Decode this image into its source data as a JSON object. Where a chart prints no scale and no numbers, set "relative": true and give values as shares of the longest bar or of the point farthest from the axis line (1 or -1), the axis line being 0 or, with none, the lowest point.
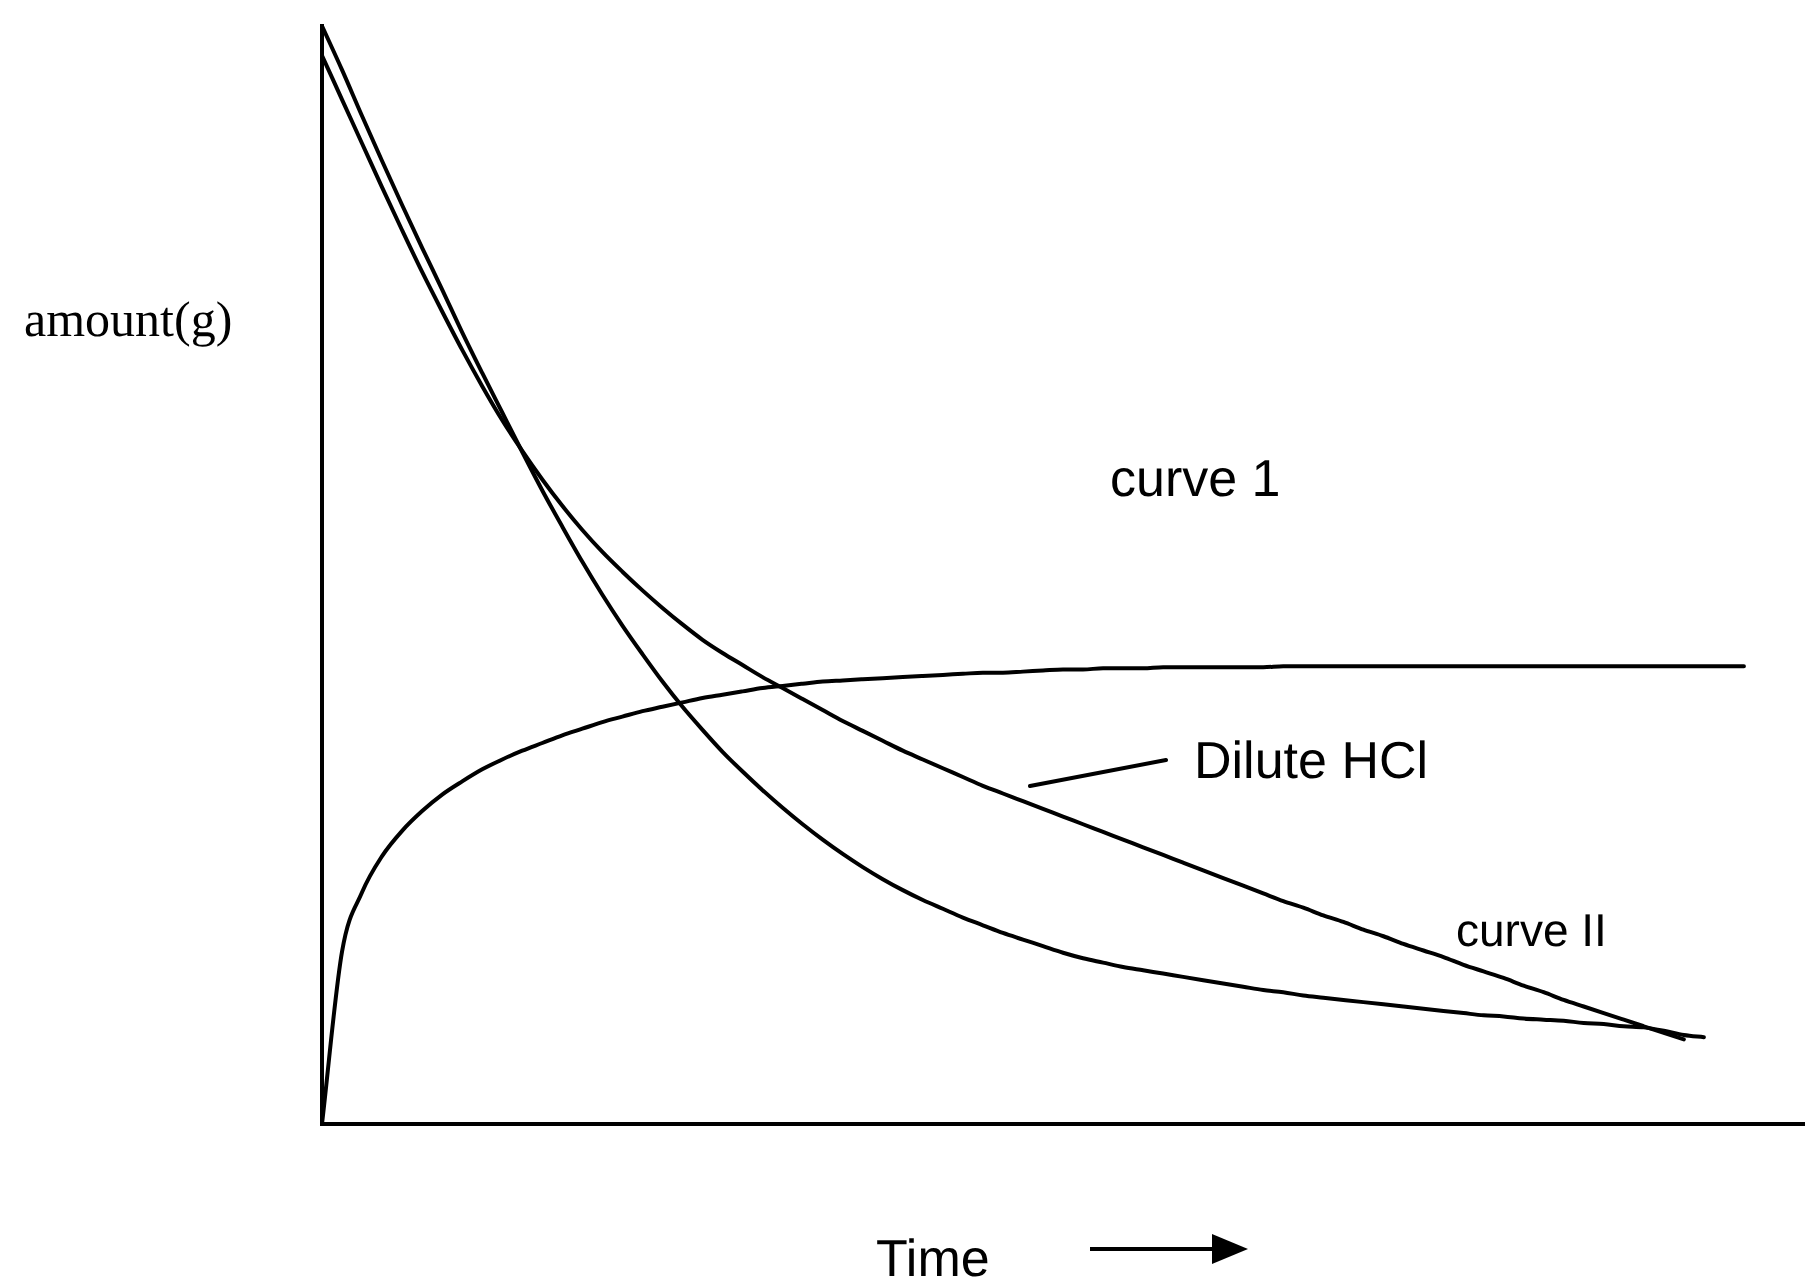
{
  "chart_data": {
    "type": "line",
    "xlabel": "Time",
    "ylabel": "amount(g)",
    "annotations": [
      "curve 1",
      "Dilute HCl",
      "curve II"
    ],
    "relative": true,
    "grid": false,
    "legend": false,
    "tick_labels": false,
    "marker": "none",
    "line_style": "solid",
    "categories": [
      null,
      null,
      null,
      null,
      null,
      null,
      null,
      null,
      null,
      null,
      null,
      null,
      null,
      null,
      null,
      null,
      null,
      null,
      null,
      null,
      null,
      null,
      null,
      null,
      null,
      null,
      null,
      null,
      null,
      null,
      null,
      null,
      null,
      null,
      null,
      null,
      null,
      null,
      null,
      null,
      null,
      null,
      null,
      null,
      null,
      null,
      null,
      null,
      null,
      null,
      null,
      null,
      null,
      null,
      null,
      null,
      null,
      null,
      null,
      null,
      null,
      null,
      null,
      null,
      null,
      null,
      null,
      null,
      null,
      null,
      null,
      null,
      null,
      null,
      null
    ],
    "series": [
      {
        "color": "#000000",
        "values": [
          0,
          0.157,
          0.211,
          0.244,
          0.267,
          0.285,
          0.3,
          0.312,
          0.323,
          0.332,
          0.34,
          0.347,
          0.354,
          0.36,
          0.366,
          0.371,
          0.376,
          0.38,
          0.384,
          0.388,
          0.391,
          0.394,
          0.397,
          0.399,
          0.401,
          0.403,
          0.404,
          0.405,
          0.406,
          0.407,
          0.408,
          0.409,
          0.41,
          0.411,
          0.411,
          0.412,
          0.413,
          0.414,
          0.414,
          0.415,
          0.415,
          0.415,
          0.416,
          0.416,
          0.416,
          0.416,
          0.416,
          0.416,
          0.417,
          0.417,
          0.417,
          0.417,
          0.417,
          0.417,
          0.417,
          0.417,
          0.417,
          0.417,
          0.417,
          0.417,
          0.417,
          0.417,
          0.417,
          0.417,
          0.417,
          0.417,
          0.417,
          0.417,
          0.417,
          0.417,
          0.417,
          0.417,
          null,
          null,
          null
        ]
      },
      {
        "color": "#000000",
        "values": [
          1,
          0.96,
          0.918,
          0.877,
          0.837,
          0.798,
          0.76,
          0.721,
          0.684,
          0.648,
          0.612,
          0.577,
          0.544,
          0.512,
          0.482,
          0.454,
          0.428,
          0.403,
          0.38,
          0.359,
          0.339,
          0.321,
          0.304,
          0.288,
          0.273,
          0.259,
          0.246,
          0.234,
          0.223,
          0.213,
          0.204,
          0.196,
          0.188,
          0.181,
          0.174,
          0.168,
          0.162,
          0.156,
          0.151,
          0.147,
          0.143,
          0.14,
          0.137,
          0.134,
          0.131,
          0.128,
          0.125,
          0.122,
          0.12,
          0.117,
          0.115,
          0.113,
          0.111,
          0.109,
          0.107,
          0.105,
          0.103,
          0.101,
          0.099,
          0.098,
          0.096,
          0.095,
          0.094,
          0.092,
          0.091,
          0.089,
          0.088,
          0.085,
          0.081,
          0.079,
          null,
          null,
          null,
          null,
          null
        ]
      },
      {
        "color": "#000000",
        "values": [
          0.973,
          0.933,
          0.893,
          0.853,
          0.814,
          0.776,
          0.74,
          0.705,
          0.672,
          0.641,
          0.613,
          0.587,
          0.563,
          0.541,
          0.521,
          0.503,
          0.486,
          0.47,
          0.455,
          0.441,
          0.429,
          0.418,
          0.407,
          0.397,
          0.387,
          0.377,
          0.367,
          0.358,
          0.349,
          0.34,
          0.332,
          0.324,
          0.316,
          0.308,
          0.301,
          0.294,
          0.287,
          0.28,
          0.273,
          0.266,
          0.259,
          0.252,
          0.245,
          0.238,
          0.231,
          0.224,
          0.217,
          0.21,
          0.203,
          0.197,
          0.19,
          0.184,
          0.177,
          0.171,
          0.164,
          0.158,
          0.152,
          0.145,
          0.139,
          0.133,
          0.126,
          0.12,
          0.113,
          0.107,
          0.101,
          0.095,
          0.089,
          0.083,
          0.077,
          null,
          null,
          null,
          null,
          null,
          null
        ]
      }
    ]
  }
}
